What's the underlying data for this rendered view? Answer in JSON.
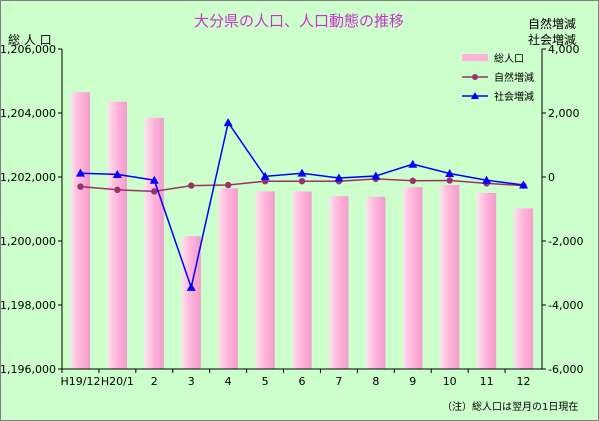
{
  "chart_data": {
    "type": "bar",
    "title": "大分県の人口、人口動態の推移",
    "left_axis_label": "総 人 口",
    "right_axis_label_line1": "自然増減",
    "right_axis_label_line2": "社会増減",
    "note": "（注）総人口は翌月の1日現在",
    "categories": [
      "H19/12",
      "H20/1",
      "2",
      "3",
      "4",
      "5",
      "6",
      "7",
      "8",
      "9",
      "10",
      "11",
      "12"
    ],
    "left_axis": {
      "min": 1196000,
      "max": 1206000,
      "step": 2000,
      "tick_labels": [
        "1,196,000",
        "1,198,000",
        "1,200,000",
        "1,202,000",
        "1,204,000",
        "1,206,000"
      ]
    },
    "right_axis": {
      "min": -6000,
      "max": 4000,
      "step": 2000,
      "tick_labels": [
        "-6,000",
        "-4,000",
        "-2,000",
        "0",
        "2,000",
        "4,000"
      ]
    },
    "grid": false,
    "legend_position": "top-right",
    "series": [
      {
        "name": "総人口",
        "kind": "bar",
        "axis": "left",
        "color": "#ffb3d9",
        "values": [
          1204650,
          1204350,
          1203850,
          1200150,
          1201650,
          1201550,
          1201550,
          1201400,
          1201380,
          1201680,
          1201750,
          1201500,
          1201020
        ]
      },
      {
        "name": "自然増減",
        "kind": "line",
        "axis": "right",
        "color": "#993366",
        "marker": "circle",
        "values": [
          -300,
          -400,
          -450,
          -270,
          -250,
          -130,
          -130,
          -130,
          -60,
          -120,
          -110,
          -200,
          -270
        ]
      },
      {
        "name": "社会増減",
        "kind": "line",
        "axis": "right",
        "color": "#0000ff",
        "marker": "triangle",
        "values": [
          120,
          80,
          -100,
          -3450,
          1700,
          20,
          120,
          -30,
          30,
          400,
          110,
          -100,
          -250
        ]
      }
    ]
  }
}
